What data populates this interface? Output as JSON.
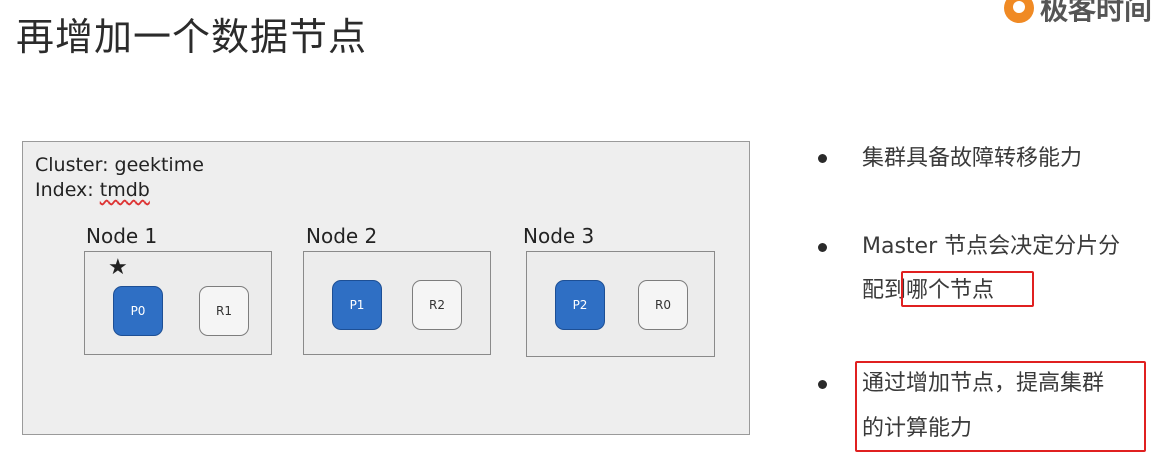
{
  "slide": {
    "title": "再增加一个数据节点",
    "logo_text": "极客时间"
  },
  "diagram": {
    "cluster_label": "Cluster: geektime",
    "index_prefix": "Index: ",
    "index_name": "tmdb",
    "nodes": [
      {
        "label": "Node 1",
        "master": true,
        "shards": [
          {
            "label": "P0",
            "kind": "primary"
          },
          {
            "label": "R1",
            "kind": "replica"
          }
        ]
      },
      {
        "label": "Node 2",
        "master": false,
        "shards": [
          {
            "label": "P1",
            "kind": "primary"
          },
          {
            "label": "R2",
            "kind": "replica"
          }
        ]
      },
      {
        "label": "Node 3",
        "master": false,
        "shards": [
          {
            "label": "P2",
            "kind": "primary"
          },
          {
            "label": "R0",
            "kind": "replica"
          }
        ]
      }
    ],
    "colors": {
      "primary": "#2f6fc4",
      "replica": "#f5f5f5",
      "highlight": "#e02020"
    }
  },
  "bullets": [
    {
      "lines": [
        "集群具备故障转移能力"
      ]
    },
    {
      "lines": [
        "Master 节点会决定分片分",
        "配到哪个节点"
      ]
    },
    {
      "lines": [
        "通过增加节点，提高集群",
        "的计算能力"
      ]
    }
  ]
}
